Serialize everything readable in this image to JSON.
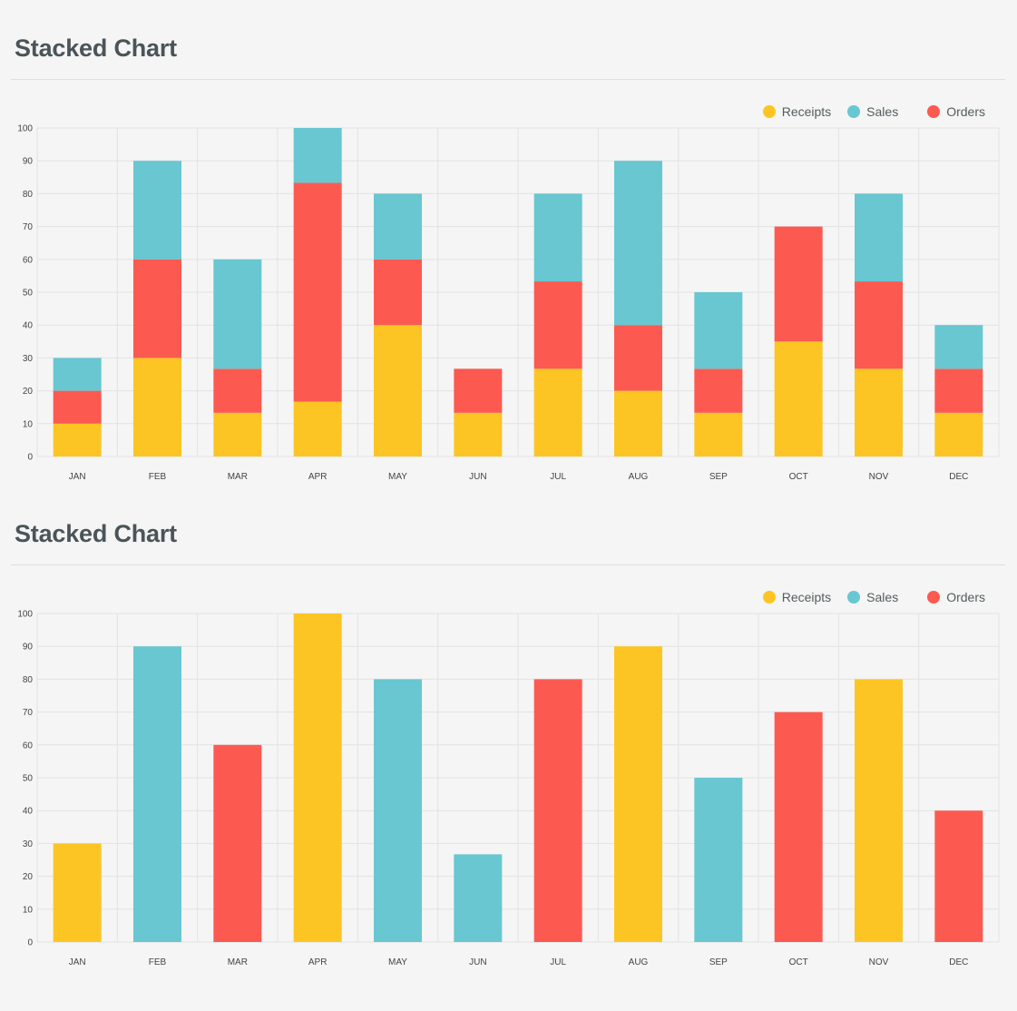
{
  "colors": {
    "receipts": "#fdc524",
    "sales": "#68c7d1",
    "orders": "#fc5a51",
    "grid": "#e2e4e4",
    "background": "#f4f5f4"
  },
  "chart_data": [
    {
      "type": "bar",
      "stacked": true,
      "title": "Stacked Chart",
      "categories": [
        "JAN",
        "FEB",
        "MAR",
        "APR",
        "MAY",
        "JUN",
        "JUL",
        "AUG",
        "SEP",
        "OCT",
        "NOV",
        "DEC"
      ],
      "series": [
        {
          "name": "Receipts",
          "color": "receipts",
          "values": [
            10,
            30,
            13.3,
            16.7,
            40,
            13.3,
            26.7,
            20,
            13.3,
            35,
            26.7,
            13.3
          ]
        },
        {
          "name": "Sales",
          "color": "sales",
          "values": [
            0,
            0,
            0,
            0,
            0,
            0,
            0,
            0,
            0,
            0,
            0,
            0
          ]
        },
        {
          "name": "Orders",
          "color": "orders",
          "values": [
            10,
            30,
            13.4,
            66.6,
            20,
            13.4,
            26.6,
            20,
            13.4,
            35,
            26.6,
            13.4
          ]
        }
      ],
      "stack_top": [
        {
          "name": "Sales",
          "color": "sales",
          "values": [
            10,
            30,
            33.3,
            16.7,
            20,
            0,
            26.7,
            50,
            23.3,
            0,
            26.7,
            13.3
          ]
        }
      ],
      "ylim": [
        0,
        100
      ],
      "yticks": [
        0,
        10,
        20,
        30,
        40,
        50,
        60,
        70,
        80,
        90,
        100
      ],
      "legend": [
        {
          "label": "Receipts",
          "color": "receipts"
        },
        {
          "label": "Sales",
          "color": "sales"
        },
        {
          "label": "Orders",
          "color": "orders"
        }
      ],
      "legend_position": "top-right",
      "grid": true
    },
    {
      "type": "bar",
      "stacked": false,
      "title": "Stacked Chart",
      "categories": [
        "JAN",
        "FEB",
        "MAR",
        "APR",
        "MAY",
        "JUN",
        "JUL",
        "AUG",
        "SEP",
        "OCT",
        "NOV",
        "DEC"
      ],
      "bars": [
        {
          "value": 30,
          "color": "receipts"
        },
        {
          "value": 90,
          "color": "sales"
        },
        {
          "value": 60,
          "color": "orders"
        },
        {
          "value": 100,
          "color": "receipts"
        },
        {
          "value": 80,
          "color": "sales"
        },
        {
          "value": 26.7,
          "color": "sales"
        },
        {
          "value": 80,
          "color": "orders"
        },
        {
          "value": 90,
          "color": "receipts"
        },
        {
          "value": 50,
          "color": "sales"
        },
        {
          "value": 70,
          "color": "orders"
        },
        {
          "value": 80,
          "color": "receipts"
        },
        {
          "value": 40,
          "color": "orders"
        }
      ],
      "ylim": [
        0,
        100
      ],
      "yticks": [
        0,
        10,
        20,
        30,
        40,
        50,
        60,
        70,
        80,
        90,
        100
      ],
      "legend": [
        {
          "label": "Receipts",
          "color": "receipts"
        },
        {
          "label": "Sales",
          "color": "sales"
        },
        {
          "label": "Orders",
          "color": "orders"
        }
      ],
      "legend_position": "top-right",
      "grid": true
    }
  ]
}
